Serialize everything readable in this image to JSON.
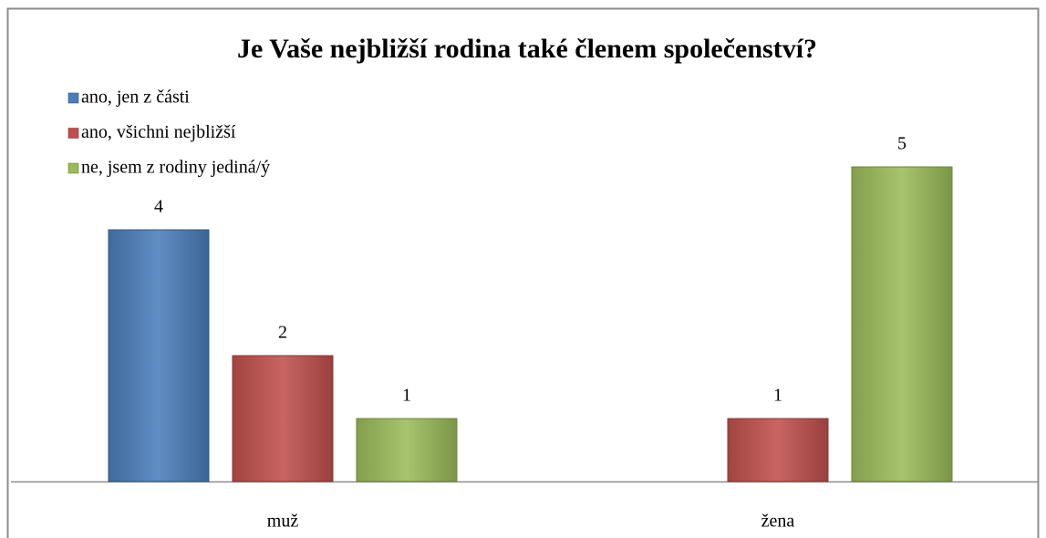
{
  "chart_data": {
    "type": "bar",
    "title": "Je Vaše nejbližší rodina také členem společenství?",
    "categories": [
      "muž",
      "žena"
    ],
    "series": [
      {
        "name": "ano, jen z části",
        "color": "#4a7ebb",
        "values": [
          4,
          null
        ]
      },
      {
        "name": "ano, všichni nejbližší",
        "color": "#c0504d",
        "values": [
          2,
          1
        ]
      },
      {
        "name": "ne, jsem z rodiny jediná/ý",
        "color": "#9bbb59",
        "values": [
          1,
          5
        ]
      }
    ],
    "legend": "top-left"
  }
}
